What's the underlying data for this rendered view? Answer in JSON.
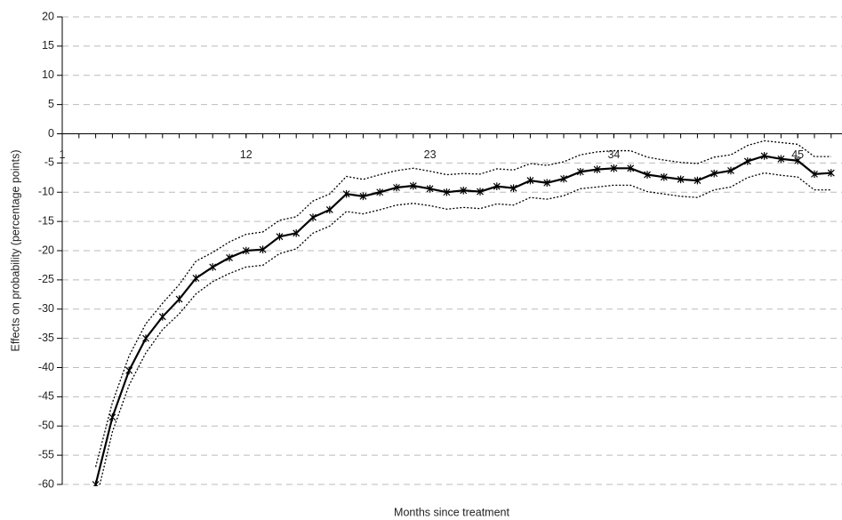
{
  "chart_data": {
    "type": "line",
    "x_label": "Months since treatment",
    "y_label": "Effects on probability (percentage points)",
    "x": [
      3,
      4,
      5,
      6,
      7,
      8,
      9,
      10,
      11,
      12,
      13,
      14,
      15,
      16,
      17,
      18,
      19,
      20,
      21,
      22,
      23,
      24,
      25,
      26,
      27,
      28,
      29,
      30,
      31,
      32,
      33,
      34,
      35,
      36,
      37,
      38,
      39,
      40,
      41,
      42,
      43,
      44,
      45,
      46,
      47
    ],
    "series": [
      {
        "color": "#000000",
        "style": "solid",
        "marker": "asterisk",
        "values": [
          -60,
          -48.5,
          -40.5,
          -35,
          -31.3,
          -28.3,
          -24.7,
          -22.8,
          -21.2,
          -20,
          -19.8,
          -17.6,
          -17,
          -14.3,
          -13,
          -10.3,
          -10.7,
          -10,
          -9.2,
          -8.9,
          -9.4,
          -10,
          -9.7,
          -9.9,
          -9,
          -9.3,
          -8,
          -8.4,
          -7.7,
          -6.5,
          -6.1,
          -5.9,
          -5.9,
          -7,
          -7.4,
          -7.8,
          -8,
          -6.8,
          -6.3,
          -4.7,
          -3.8,
          -4.3,
          -4.6,
          -6.9,
          -6.7
        ]
      },
      {
        "color": "#000000",
        "style": "dotted",
        "values": [
          -57,
          -46,
          -38,
          -32.5,
          -29,
          -25.8,
          -21.8,
          -20.3,
          -18.5,
          -17.2,
          -16.8,
          -14.8,
          -14.2,
          -11.5,
          -10.3,
          -7.3,
          -7.8,
          -7,
          -6.3,
          -5.9,
          -6.4,
          -7,
          -6.8,
          -6.9,
          -6,
          -6.2,
          -5.1,
          -5.4,
          -4.8,
          -3.6,
          -3.1,
          -2.9,
          -2.9,
          -4,
          -4.5,
          -4.9,
          -5.1,
          -4,
          -3.6,
          -2,
          -1.2,
          -1.5,
          -1.8,
          -3.9,
          -3.9
        ]
      },
      {
        "color": "#000000",
        "style": "dotted",
        "values": [
          -63,
          -51,
          -43,
          -37.5,
          -33.5,
          -30.8,
          -27.4,
          -25.3,
          -23.9,
          -22.8,
          -22.5,
          -20.5,
          -19.7,
          -17,
          -15.8,
          -13.3,
          -13.7,
          -13,
          -12.2,
          -11.9,
          -12.3,
          -12.9,
          -12.6,
          -12.8,
          -12,
          -12.2,
          -10.9,
          -11.2,
          -10.6,
          -9.4,
          -9.1,
          -8.8,
          -8.8,
          -9.9,
          -10.3,
          -10.7,
          -10.9,
          -9.6,
          -9.1,
          -7.5,
          -6.7,
          -7.1,
          -7.4,
          -9.6,
          -9.6
        ]
      }
    ],
    "xlim": [
      1,
      47.65
    ],
    "xticks": [
      1,
      12,
      23,
      34,
      45
    ],
    "ylim": [
      -60,
      20
    ],
    "yticks": [
      -60,
      -55,
      -50,
      -45,
      -40,
      -35,
      -30,
      -25,
      -20,
      -15,
      -10,
      -5,
      0,
      5,
      10,
      15,
      20
    ],
    "grid": true,
    "x_axis_at": 0
  }
}
